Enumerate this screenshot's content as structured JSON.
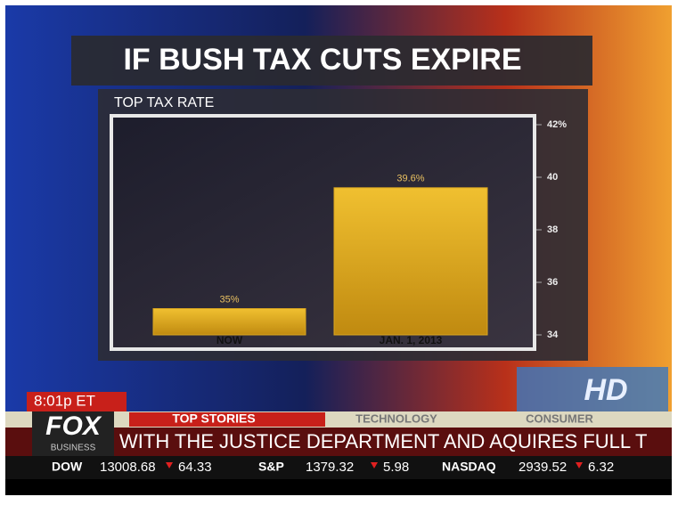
{
  "chart_data": {
    "type": "bar",
    "title": "IF BUSH TAX CUTS EXPIRE",
    "subtitle": "TOP TAX RATE",
    "categories": [
      "NOW",
      "JAN. 1, 2013"
    ],
    "values": [
      35,
      39.6
    ],
    "value_labels": [
      "35%",
      "39.6%"
    ],
    "color": "#d9a520",
    "ylim": [
      34,
      42
    ],
    "yticks": [
      34,
      36,
      38,
      40,
      {
        "value": 42,
        "label": "42%"
      }
    ],
    "axis_side": "right"
  },
  "broadcast": {
    "time": "8:01p ET",
    "logo": "FOX",
    "logo_sub": "BUSINESS",
    "hd": "HD",
    "tabs": [
      "TOP STORIES",
      "TECHNOLOGY",
      "CONSUMER"
    ],
    "crawl": "WITH THE JUSTICE DEPARTMENT AND AQUIRES FULL T",
    "markets": [
      {
        "name": "DOW",
        "value": 13008.68,
        "change": 64.33
      },
      {
        "name": "S&P",
        "value": 1379.32,
        "change": 5.98
      },
      {
        "name": "NASDAQ",
        "value": 2939.52,
        "change": 6.32
      }
    ]
  }
}
